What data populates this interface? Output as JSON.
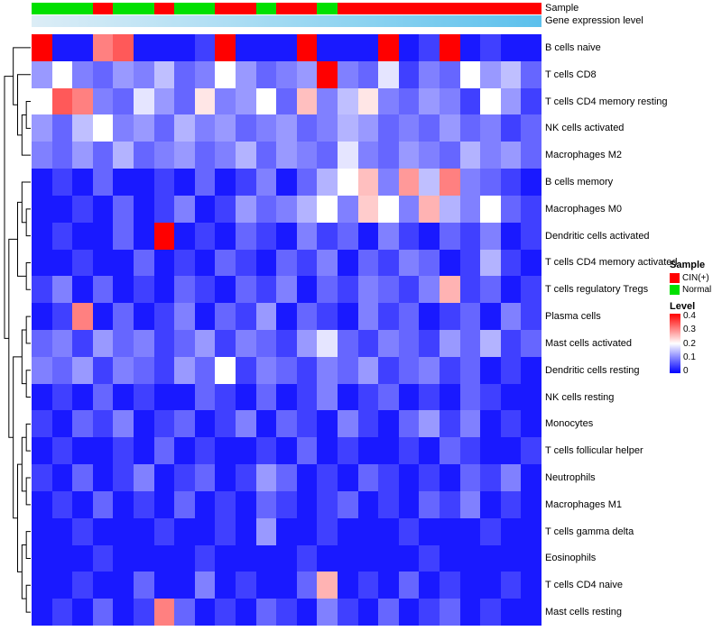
{
  "annotations": {
    "sample_label": "Sample",
    "expression_label": "Gene expression level",
    "sample_colors": {
      "CIN(+)": "#ff0000",
      "Normal": "#00e000"
    },
    "expression_gradient": [
      "#dcedf6",
      "#b4e0f4",
      "#8ad2f0",
      "#5cc0ec"
    ]
  },
  "legend": {
    "sample_title": "Sample",
    "sample_items": [
      {
        "label": "CIN(+)",
        "color": "#ff0000"
      },
      {
        "label": "Normal",
        "color": "#00e000"
      }
    ],
    "level_title": "Level",
    "level_ticks": [
      "0.4",
      "0.3",
      "0.2",
      "0.1",
      "0"
    ],
    "level_gradient": [
      "#ff0000",
      "#ffffff",
      "#0000ff"
    ]
  },
  "chart_data": {
    "type": "heatmap",
    "title": "",
    "legend_position": "right",
    "value_range": [
      0,
      0.4
    ],
    "colorscale": {
      "0": "#0000ff",
      "0.2": "#ffffff",
      "0.4": "#ff0000"
    },
    "rows": [
      "B cells naive",
      "T cells CD8",
      "T cells CD4 memory resting",
      "NK cells activated",
      "Macrophages M2",
      "B cells memory",
      "Macrophages M0",
      "Dendritic cells activated",
      "T cells CD4 memory activated",
      "T cells regulatory Tregs",
      "Plasma cells",
      "Mast cells activated",
      "Dendritic cells resting",
      "NK cells resting",
      "Monocytes",
      "T cells follicular helper",
      "Neutrophils",
      "Macrophages M1",
      "T cells gamma delta",
      "Eosinophils",
      "T cells CD4 naive",
      "Mast cells resting"
    ],
    "n_columns": 25,
    "column_sample": [
      "Normal",
      "Normal",
      "Normal",
      "CIN(+)",
      "Normal",
      "Normal",
      "CIN(+)",
      "Normal",
      "Normal",
      "CIN(+)",
      "CIN(+)",
      "Normal",
      "CIN(+)",
      "CIN(+)",
      "Normal",
      "CIN(+)",
      "CIN(+)",
      "CIN(+)",
      "CIN(+)",
      "CIN(+)",
      "CIN(+)",
      "CIN(+)",
      "CIN(+)",
      "CIN(+)",
      "CIN(+)"
    ],
    "values": [
      [
        0.4,
        0.02,
        0.02,
        0.3,
        0.33,
        0.02,
        0.02,
        0.02,
        0.05,
        0.4,
        0.02,
        0.02,
        0.02,
        0.4,
        0.02,
        0.02,
        0.02,
        0.4,
        0.02,
        0.05,
        0.4,
        0.02,
        0.05,
        0.02,
        0.02
      ],
      [
        0.12,
        0.2,
        0.1,
        0.08,
        0.12,
        0.1,
        0.15,
        0.08,
        0.1,
        0.2,
        0.12,
        0.08,
        0.1,
        0.12,
        0.4,
        0.1,
        0.08,
        0.18,
        0.05,
        0.1,
        0.08,
        0.2,
        0.12,
        0.15,
        0.08
      ],
      [
        0.2,
        0.33,
        0.3,
        0.1,
        0.08,
        0.18,
        0.12,
        0.08,
        0.22,
        0.1,
        0.12,
        0.2,
        0.08,
        0.25,
        0.1,
        0.15,
        0.22,
        0.1,
        0.08,
        0.12,
        0.1,
        0.05,
        0.2,
        0.12,
        0.05
      ],
      [
        0.12,
        0.08,
        0.15,
        0.2,
        0.1,
        0.12,
        0.08,
        0.14,
        0.1,
        0.12,
        0.08,
        0.1,
        0.12,
        0.08,
        0.1,
        0.14,
        0.12,
        0.08,
        0.1,
        0.08,
        0.12,
        0.08,
        0.1,
        0.05,
        0.08
      ],
      [
        0.1,
        0.08,
        0.12,
        0.08,
        0.14,
        0.08,
        0.1,
        0.12,
        0.08,
        0.1,
        0.14,
        0.08,
        0.12,
        0.1,
        0.08,
        0.18,
        0.1,
        0.08,
        0.12,
        0.1,
        0.08,
        0.14,
        0.1,
        0.12,
        0.08
      ],
      [
        0.02,
        0.05,
        0.02,
        0.08,
        0.02,
        0.02,
        0.05,
        0.02,
        0.08,
        0.02,
        0.05,
        0.1,
        0.02,
        0.08,
        0.14,
        0.2,
        0.25,
        0.1,
        0.28,
        0.15,
        0.3,
        0.1,
        0.08,
        0.05,
        0.02
      ],
      [
        0.02,
        0.02,
        0.05,
        0.02,
        0.08,
        0.02,
        0.05,
        0.1,
        0.02,
        0.05,
        0.12,
        0.08,
        0.1,
        0.14,
        0.2,
        0.1,
        0.24,
        0.2,
        0.1,
        0.26,
        0.14,
        0.1,
        0.2,
        0.08,
        0.05
      ],
      [
        0.02,
        0.05,
        0.02,
        0.02,
        0.08,
        0.02,
        0.4,
        0.02,
        0.05,
        0.02,
        0.08,
        0.05,
        0.02,
        0.1,
        0.05,
        0.08,
        0.02,
        0.1,
        0.05,
        0.02,
        0.08,
        0.05,
        0.1,
        0.02,
        0.05
      ],
      [
        0.02,
        0.02,
        0.05,
        0.02,
        0.02,
        0.08,
        0.02,
        0.05,
        0.02,
        0.08,
        0.05,
        0.02,
        0.08,
        0.05,
        0.1,
        0.02,
        0.08,
        0.05,
        0.1,
        0.08,
        0.02,
        0.05,
        0.14,
        0.05,
        0.02
      ],
      [
        0.05,
        0.1,
        0.02,
        0.08,
        0.02,
        0.05,
        0.02,
        0.08,
        0.05,
        0.02,
        0.08,
        0.05,
        0.1,
        0.02,
        0.08,
        0.05,
        0.1,
        0.08,
        0.05,
        0.1,
        0.26,
        0.05,
        0.08,
        0.02,
        0.05
      ],
      [
        0.02,
        0.05,
        0.3,
        0.02,
        0.08,
        0.02,
        0.05,
        0.1,
        0.02,
        0.08,
        0.05,
        0.12,
        0.02,
        0.08,
        0.05,
        0.02,
        0.1,
        0.05,
        0.08,
        0.02,
        0.05,
        0.08,
        0.02,
        0.1,
        0.05
      ],
      [
        0.08,
        0.1,
        0.05,
        0.12,
        0.08,
        0.1,
        0.05,
        0.08,
        0.12,
        0.05,
        0.1,
        0.08,
        0.05,
        0.12,
        0.18,
        0.08,
        0.05,
        0.1,
        0.08,
        0.05,
        0.12,
        0.08,
        0.14,
        0.05,
        0.08
      ],
      [
        0.1,
        0.08,
        0.12,
        0.05,
        0.1,
        0.08,
        0.05,
        0.12,
        0.08,
        0.2,
        0.05,
        0.1,
        0.08,
        0.05,
        0.1,
        0.08,
        0.12,
        0.05,
        0.08,
        0.1,
        0.05,
        0.08,
        0.02,
        0.05,
        0.02
      ],
      [
        0.02,
        0.05,
        0.02,
        0.08,
        0.02,
        0.05,
        0.02,
        0.02,
        0.08,
        0.05,
        0.02,
        0.08,
        0.02,
        0.05,
        0.1,
        0.02,
        0.05,
        0.08,
        0.02,
        0.05,
        0.02,
        0.08,
        0.05,
        0.02,
        0.02
      ],
      [
        0.05,
        0.02,
        0.08,
        0.05,
        0.1,
        0.02,
        0.05,
        0.08,
        0.02,
        0.05,
        0.1,
        0.02,
        0.08,
        0.05,
        0.02,
        0.1,
        0.05,
        0.02,
        0.08,
        0.12,
        0.05,
        0.1,
        0.02,
        0.05,
        0.02
      ],
      [
        0.02,
        0.05,
        0.02,
        0.02,
        0.05,
        0.02,
        0.08,
        0.02,
        0.05,
        0.02,
        0.02,
        0.05,
        0.02,
        0.08,
        0.02,
        0.05,
        0.02,
        0.02,
        0.05,
        0.02,
        0.08,
        0.05,
        0.02,
        0.02,
        0.05
      ],
      [
        0.05,
        0.02,
        0.08,
        0.02,
        0.05,
        0.1,
        0.02,
        0.05,
        0.08,
        0.02,
        0.05,
        0.12,
        0.08,
        0.02,
        0.05,
        0.02,
        0.08,
        0.05,
        0.02,
        0.05,
        0.02,
        0.08,
        0.05,
        0.1,
        0.02
      ],
      [
        0.02,
        0.05,
        0.02,
        0.08,
        0.02,
        0.05,
        0.02,
        0.08,
        0.02,
        0.05,
        0.02,
        0.08,
        0.05,
        0.02,
        0.05,
        0.08,
        0.02,
        0.05,
        0.02,
        0.08,
        0.05,
        0.1,
        0.02,
        0.05,
        0.02
      ],
      [
        0.02,
        0.02,
        0.05,
        0.02,
        0.02,
        0.02,
        0.05,
        0.02,
        0.02,
        0.05,
        0.02,
        0.12,
        0.02,
        0.02,
        0.05,
        0.02,
        0.02,
        0.02,
        0.05,
        0.02,
        0.02,
        0.02,
        0.05,
        0.02,
        0.02
      ],
      [
        0.02,
        0.02,
        0.02,
        0.05,
        0.02,
        0.02,
        0.02,
        0.02,
        0.05,
        0.02,
        0.02,
        0.02,
        0.02,
        0.05,
        0.02,
        0.02,
        0.02,
        0.02,
        0.02,
        0.05,
        0.02,
        0.02,
        0.02,
        0.02,
        0.02
      ],
      [
        0.02,
        0.02,
        0.05,
        0.02,
        0.02,
        0.08,
        0.02,
        0.02,
        0.1,
        0.02,
        0.05,
        0.02,
        0.02,
        0.08,
        0.26,
        0.02,
        0.05,
        0.02,
        0.08,
        0.02,
        0.05,
        0.02,
        0.02,
        0.05,
        0.02
      ],
      [
        0.02,
        0.05,
        0.02,
        0.08,
        0.02,
        0.05,
        0.3,
        0.08,
        0.02,
        0.05,
        0.02,
        0.08,
        0.05,
        0.02,
        0.1,
        0.05,
        0.02,
        0.08,
        0.02,
        0.05,
        0.08,
        0.02,
        0.05,
        0.02,
        0.02
      ]
    ],
    "row_dendrogram": [
      [
        0,
        [
          1,
          [
            [
              2,
              3
            ],
            4
          ]
        ]
      ],
      [
        [
          [
            5,
            [
              6,
              7
            ]
          ],
          [
            8,
            9
          ]
        ],
        [
          [
            [
              10,
              11
            ],
            [
              12,
              13
            ]
          ],
          [
            [
              [
                14,
                15
              ],
              [
                16,
                17
              ]
            ],
            [
              [
                18,
                19
              ],
              [
                20,
                21
              ]
            ]
          ]
        ]
      ]
    ]
  }
}
